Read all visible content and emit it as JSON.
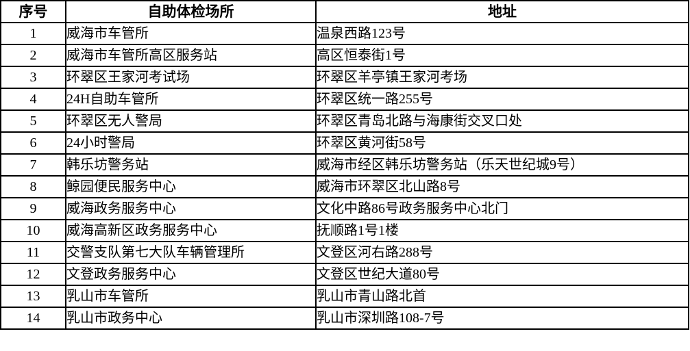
{
  "table": {
    "headers": {
      "no": "序号",
      "place": "自助体检场所",
      "address": "地址"
    },
    "rows": [
      {
        "no": "1",
        "place": "威海市车管所",
        "address": "温泉西路123号"
      },
      {
        "no": "2",
        "place": "威海市车管所高区服务站",
        "address": "高区恒泰街1号"
      },
      {
        "no": "3",
        "place": "环翠区王家河考试场",
        "address": "环翠区羊亭镇王家河考场"
      },
      {
        "no": "4",
        "place": "24H自助车管所",
        "address": "环翠区统一路255号"
      },
      {
        "no": "5",
        "place": "环翠区无人警局",
        "address": "环翠区青岛北路与海康街交叉口处"
      },
      {
        "no": "6",
        "place": "24小时警局",
        "address": "环翠区黄河街58号"
      },
      {
        "no": "7",
        "place": "韩乐坊警务站",
        "address": "威海市经区韩乐坊警务站（乐天世纪城9号）"
      },
      {
        "no": "8",
        "place": "鲸园便民服务中心",
        "address": "威海市环翠区北山路8号"
      },
      {
        "no": "9",
        "place": "威海政务服务中心",
        "address": "文化中路86号政务服务中心北门"
      },
      {
        "no": "10",
        "place": "威海高新区政务服务中心",
        "address": "抚顺路1号1楼"
      },
      {
        "no": "11",
        "place": "交警支队第七大队车辆管理所",
        "address": "文登区河右路288号"
      },
      {
        "no": "12",
        "place": "文登政务服务中心",
        "address": "文登区世纪大道80号"
      },
      {
        "no": "13",
        "place": "乳山市车管所",
        "address": "乳山市青山路北首"
      },
      {
        "no": "14",
        "place": "乳山市政务中心",
        "address": "乳山市深圳路108-7号"
      }
    ]
  }
}
